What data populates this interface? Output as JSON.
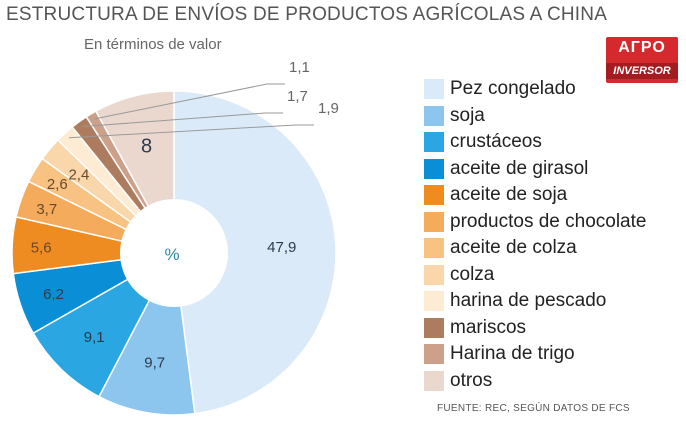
{
  "title": "ESTRUCTURA DE ENVÍOS DE PRODUCTOS AGRÍCOLAS A CHINA",
  "subtitle": "En términos de valor",
  "center_label": "%",
  "logo": {
    "top": "АГРО",
    "bottom": "INVERSOR"
  },
  "source": "FUENTE: REC, SEGÚN DATOS DE FCS",
  "chart_data": {
    "type": "pie",
    "title": "ESTRUCTURA DE ENVÍOS DE PRODUCTOS AGRÍCOLAS A CHINA",
    "subtitle": "En términos de valor",
    "unit": "%",
    "legend_position": "right",
    "slices": [
      {
        "name": "Pez congelado",
        "value": 47.9,
        "label": "47,9",
        "color": "#daeaf8"
      },
      {
        "name": "soja",
        "value": 9.7,
        "label": "9,7",
        "color": "#8cc6ee"
      },
      {
        "name": "crustáceos",
        "value": 9.1,
        "label": "9,1",
        "color": "#2aa6e3"
      },
      {
        "name": "aceite de girasol",
        "value": 6.2,
        "label": "6,2",
        "color": "#0a8fd7"
      },
      {
        "name": "aceite de soja",
        "value": 5.6,
        "label": "5,6",
        "color": "#ee8c22"
      },
      {
        "name": "productos de chocolate",
        "value": 3.7,
        "label": "3,7",
        "color": "#f4ab5c"
      },
      {
        "name": "aceite de colza",
        "value": 2.6,
        "label": "2,6",
        "color": "#f7c282"
      },
      {
        "name": "colza",
        "value": 2.4,
        "label": "2,4",
        "color": "#fad7aa"
      },
      {
        "name": "harina de pescado",
        "value": 1.9,
        "label": "1,9",
        "color": "#fdebd3"
      },
      {
        "name": "mariscos",
        "value": 1.7,
        "label": "1,7",
        "color": "#ad7c5f"
      },
      {
        "name": "Harina de trigo",
        "value": 1.1,
        "label": "1,1",
        "color": "#cda08a"
      },
      {
        "name": "otros",
        "value": 8,
        "label": "8",
        "color": "#ead8cf"
      }
    ]
  }
}
